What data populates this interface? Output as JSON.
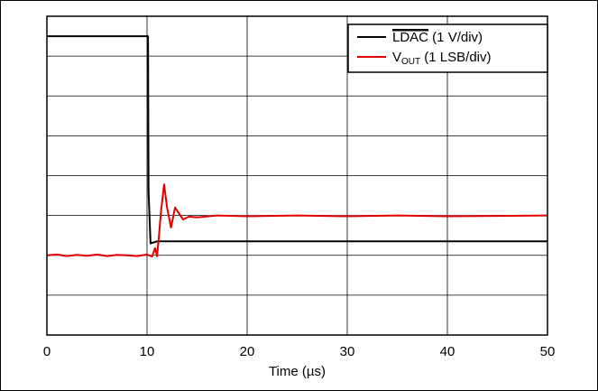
{
  "chart_data": {
    "type": "line",
    "xlabel": "Time (µs)",
    "x_ticks": [
      "0",
      "10",
      "20",
      "30",
      "40",
      "50"
    ],
    "xlim": [
      0,
      50
    ],
    "y_divisions": 8,
    "grid": true,
    "legend_position": "top-right",
    "legend": {
      "ldac_label": "LDAC",
      "ldac_unit": " (1 V/div)",
      "vout_label": "V",
      "vout_subscript": "OUT",
      "vout_unit": " (1 LSB/div)"
    },
    "series": [
      {
        "name": "LDAC (1 V/div)",
        "color": "#000000",
        "x": [
          0,
          10.1,
          10.15,
          10.35,
          11.0,
          50
        ],
        "y": [
          7.5,
          7.5,
          3.6,
          2.3,
          2.35,
          2.35
        ]
      },
      {
        "name": "VOUT (1 LSB/div)",
        "color": "#e00000",
        "x": [
          0,
          1,
          2,
          3,
          4,
          5,
          6,
          7,
          8,
          9,
          10,
          10.5,
          10.8,
          11.0,
          11.2,
          11.4,
          11.7,
          12.0,
          12.4,
          12.8,
          13.2,
          13.6,
          14.2,
          15,
          17,
          20,
          25,
          30,
          35,
          40,
          45,
          50
        ],
        "y": [
          2.0,
          2.02,
          1.98,
          2.01,
          1.99,
          2.02,
          1.98,
          2.01,
          2.0,
          1.98,
          2.02,
          1.97,
          2.18,
          1.98,
          2.5,
          3.1,
          3.78,
          3.2,
          2.7,
          3.2,
          3.05,
          2.9,
          2.97,
          2.95,
          3.0,
          2.98,
          3.0,
          2.98,
          3.0,
          2.98,
          2.99,
          3.0
        ]
      }
    ]
  }
}
